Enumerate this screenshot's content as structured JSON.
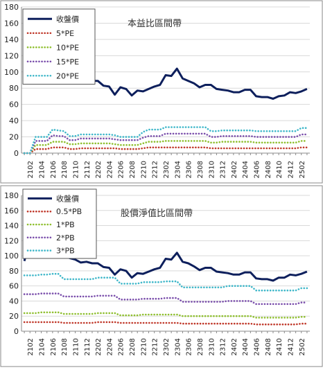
{
  "chart_data": [
    {
      "type": "line",
      "title": "本益比區間帶",
      "ylim": [
        0,
        180
      ],
      "yticks": [
        0,
        20,
        40,
        60,
        80,
        100,
        120,
        140,
        160,
        180
      ],
      "x": [
        "2101",
        "2102",
        "2103",
        "2104",
        "2105",
        "2106",
        "2107",
        "2108",
        "2109",
        "2110",
        "2111",
        "2112",
        "2201",
        "2202",
        "2203",
        "2204",
        "2205",
        "2206",
        "2207",
        "2208",
        "2209",
        "2210",
        "2211",
        "2212",
        "2301",
        "2302",
        "2303",
        "2304",
        "2305",
        "2306",
        "2307",
        "2308",
        "2309",
        "2310",
        "2311",
        "2312",
        "2401",
        "2402",
        "2403",
        "2404",
        "2405",
        "2406",
        "2407",
        "2408",
        "2409",
        "2410",
        "2411",
        "2412",
        "2501",
        "2502",
        "2503"
      ],
      "xtick_labels": [
        "2102",
        "2104",
        "2106",
        "2108",
        "2110",
        "2112",
        "2202",
        "2204",
        "2206",
        "2208",
        "2210",
        "2212",
        "2302",
        "2304",
        "2306",
        "2308",
        "2310",
        "2312",
        "2402",
        "2404",
        "2406",
        "2408",
        "2410",
        "2412",
        "2502"
      ],
      "legend": {
        "position": "top-left",
        "entries": [
          "收盤價",
          "5*PE",
          "10*PE",
          "15*PE",
          "20*PE"
        ]
      },
      "series": [
        {
          "name": "收盤價",
          "color": "#0d1f5c",
          "style": "solid",
          "values": [
            100,
            103,
            101,
            105,
            108,
            107,
            109,
            105,
            97,
            94,
            90,
            91,
            89,
            89,
            83,
            82,
            72,
            81,
            79,
            71,
            77,
            76,
            79,
            82,
            84,
            96,
            95,
            104,
            92,
            89,
            86,
            81,
            84,
            84,
            79,
            78,
            77,
            75,
            75,
            78,
            78,
            70,
            69,
            69,
            67,
            70,
            71,
            75,
            74,
            76,
            79
          ]
        },
        {
          "name": "5*PE",
          "color": "#c0392b",
          "style": "dotted",
          "values": [
            0,
            0,
            5,
            5,
            5,
            7,
            7,
            7,
            5,
            5,
            6,
            6,
            6,
            6,
            6,
            6,
            6,
            5,
            5,
            5,
            5,
            6,
            7,
            7,
            7,
            7,
            7,
            7,
            7,
            7,
            7,
            7,
            7,
            6,
            6,
            6,
            6,
            6,
            6,
            6,
            6,
            6,
            6,
            6,
            6,
            6,
            6,
            6,
            6,
            7,
            7
          ]
        },
        {
          "name": "10*PE",
          "color": "#8fbf2f",
          "style": "dotted",
          "values": [
            0,
            0,
            10,
            10,
            10,
            14,
            14,
            14,
            11,
            11,
            12,
            12,
            12,
            12,
            12,
            12,
            11,
            10,
            10,
            10,
            10,
            12,
            14,
            14,
            14,
            15,
            15,
            15,
            15,
            15,
            15,
            15,
            15,
            13,
            13,
            14,
            14,
            14,
            14,
            14,
            14,
            13,
            13,
            13,
            13,
            13,
            13,
            13,
            13,
            15,
            15
          ]
        },
        {
          "name": "15*PE",
          "color": "#7a4eab",
          "style": "dotted",
          "values": [
            0,
            0,
            15,
            15,
            15,
            22,
            21,
            21,
            16,
            16,
            18,
            18,
            18,
            18,
            18,
            18,
            17,
            16,
            16,
            16,
            16,
            19,
            21,
            21,
            21,
            24,
            24,
            24,
            24,
            24,
            24,
            24,
            24,
            20,
            20,
            21,
            21,
            21,
            21,
            21,
            21,
            20,
            20,
            20,
            20,
            20,
            20,
            20,
            20,
            23,
            23
          ]
        },
        {
          "name": "20*PE",
          "color": "#3fb7c9",
          "style": "dotted",
          "values": [
            0,
            0,
            20,
            20,
            20,
            29,
            28,
            27,
            21,
            21,
            23,
            23,
            23,
            23,
            23,
            23,
            22,
            20,
            20,
            20,
            20,
            26,
            29,
            29,
            29,
            32,
            32,
            32,
            32,
            32,
            32,
            32,
            32,
            27,
            27,
            28,
            28,
            28,
            28,
            28,
            28,
            27,
            27,
            27,
            27,
            27,
            27,
            27,
            27,
            31,
            31
          ]
        }
      ]
    },
    {
      "type": "line",
      "title": "股價淨值比區間帶",
      "ylim": [
        0,
        180
      ],
      "yticks": [
        0,
        20,
        40,
        60,
        80,
        100,
        120,
        140,
        160,
        180
      ],
      "x": [
        "2101",
        "2102",
        "2103",
        "2104",
        "2105",
        "2106",
        "2107",
        "2108",
        "2109",
        "2110",
        "2111",
        "2112",
        "2201",
        "2202",
        "2203",
        "2204",
        "2205",
        "2206",
        "2207",
        "2208",
        "2209",
        "2210",
        "2211",
        "2212",
        "2301",
        "2302",
        "2303",
        "2304",
        "2305",
        "2306",
        "2307",
        "2308",
        "2309",
        "2310",
        "2311",
        "2312",
        "2401",
        "2402",
        "2403",
        "2404",
        "2405",
        "2406",
        "2407",
        "2408",
        "2409",
        "2410",
        "2411",
        "2412",
        "2501",
        "2502",
        "2503"
      ],
      "xtick_labels": [
        "2102",
        "2104",
        "2106",
        "2108",
        "2110",
        "2112",
        "2202",
        "2204",
        "2206",
        "2208",
        "2210",
        "2212",
        "2302",
        "2304",
        "2306",
        "2308",
        "2310",
        "2312",
        "2402",
        "2404",
        "2406",
        "2408",
        "2410",
        "2412",
        "2502"
      ],
      "legend": {
        "position": "top-left",
        "entries": [
          "收盤價",
          "0.5*PB",
          "1*PB",
          "2*PB",
          "3*PB"
        ]
      },
      "series": [
        {
          "name": "收盤價",
          "color": "#0d1f5c",
          "style": "solid",
          "values": [
            93,
            120,
            108,
            103,
            110,
            112,
            108,
            104,
            97,
            95,
            91,
            92,
            90,
            90,
            85,
            84,
            75,
            82,
            80,
            71,
            77,
            76,
            79,
            82,
            84,
            96,
            95,
            104,
            92,
            90,
            86,
            81,
            84,
            84,
            79,
            78,
            77,
            75,
            75,
            78,
            78,
            70,
            69,
            69,
            67,
            71,
            71,
            75,
            74,
            76,
            79
          ]
        },
        {
          "name": "0.5*PB",
          "color": "#c0392b",
          "style": "dotted",
          "values": [
            12,
            12,
            12,
            12,
            12,
            12,
            12,
            11,
            11,
            11,
            11,
            11,
            11,
            12,
            12,
            12,
            12,
            11,
            11,
            11,
            11,
            11,
            11,
            11,
            11,
            11,
            11,
            11,
            10,
            10,
            10,
            10,
            10,
            10,
            10,
            10,
            10,
            10,
            10,
            10,
            10,
            9,
            9,
            9,
            9,
            9,
            9,
            9,
            9,
            10,
            10
          ]
        },
        {
          "name": "1*PB",
          "color": "#8fbf2f",
          "style": "dotted",
          "values": [
            24,
            24,
            24,
            25,
            25,
            25,
            25,
            23,
            23,
            23,
            23,
            23,
            23,
            24,
            24,
            24,
            24,
            21,
            21,
            21,
            21,
            22,
            22,
            22,
            22,
            22,
            22,
            22,
            20,
            20,
            20,
            20,
            20,
            20,
            20,
            20,
            20,
            20,
            20,
            20,
            20,
            18,
            18,
            18,
            18,
            18,
            18,
            18,
            18,
            19,
            19
          ]
        },
        {
          "name": "2*PB",
          "color": "#7a4eab",
          "style": "dotted",
          "values": [
            49,
            49,
            49,
            50,
            50,
            50,
            50,
            46,
            46,
            46,
            46,
            46,
            46,
            47,
            47,
            47,
            47,
            42,
            42,
            42,
            42,
            43,
            43,
            43,
            43,
            44,
            44,
            44,
            39,
            39,
            39,
            39,
            39,
            39,
            39,
            39,
            40,
            40,
            40,
            40,
            40,
            36,
            36,
            36,
            36,
            36,
            36,
            36,
            36,
            38,
            38
          ]
        },
        {
          "name": "3*PB",
          "color": "#3fb7c9",
          "style": "dotted",
          "values": [
            74,
            74,
            74,
            75,
            75,
            76,
            76,
            69,
            69,
            69,
            69,
            69,
            69,
            71,
            71,
            71,
            71,
            63,
            63,
            63,
            63,
            65,
            65,
            65,
            65,
            66,
            66,
            66,
            58,
            58,
            58,
            58,
            58,
            58,
            58,
            58,
            60,
            60,
            60,
            60,
            60,
            54,
            54,
            54,
            54,
            54,
            54,
            54,
            54,
            57,
            57
          ]
        }
      ]
    }
  ]
}
